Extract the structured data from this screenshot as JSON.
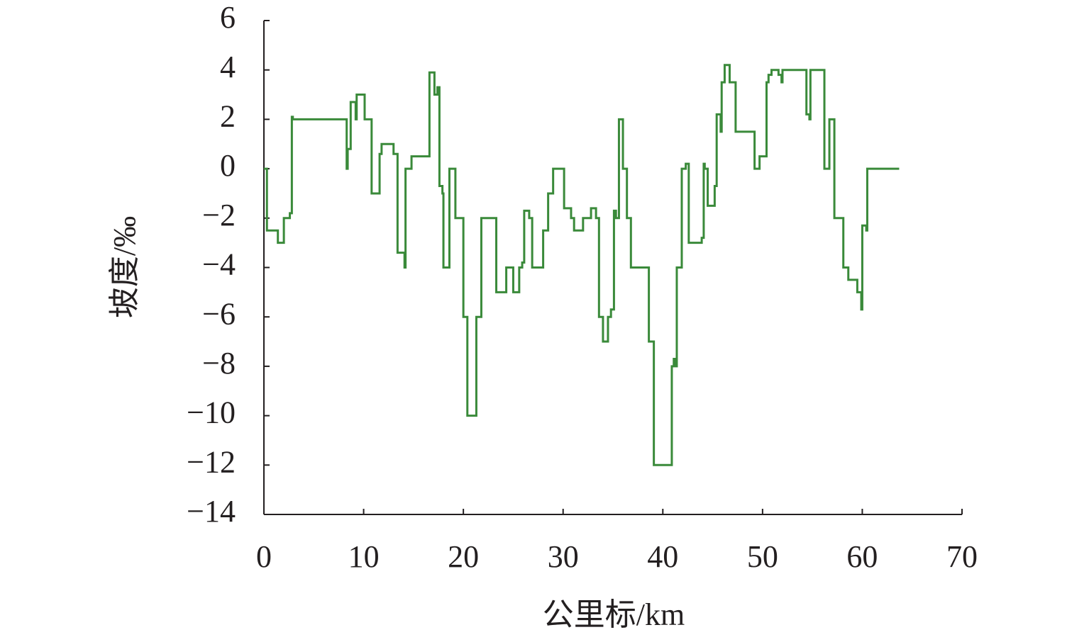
{
  "chart_data": {
    "type": "line",
    "x_label": "公里标/km",
    "y_label": "坡度/‰",
    "xlim": [
      0,
      70
    ],
    "xticks": [
      0,
      10,
      20,
      30,
      40,
      50,
      60,
      70
    ],
    "ylim": [
      -14,
      6
    ],
    "yticks": [
      6,
      4,
      2,
      0,
      {
        "value": -2,
        "label": "−2"
      },
      {
        "value": -4,
        "label": "−4"
      },
      {
        "value": -6,
        "label": "−6"
      },
      {
        "value": -8,
        "label": "−8"
      },
      {
        "value": -10,
        "label": "−10"
      },
      {
        "value": -12,
        "label": "−12"
      },
      {
        "value": -14,
        "label": "−14"
      }
    ],
    "grid": false,
    "x": [
      0,
      0.3,
      0.3,
      1.4,
      1.4,
      2.0,
      2.0,
      2.6,
      2.6,
      2.8,
      2.8,
      2.9,
      2.9,
      8.3,
      8.3,
      8.4,
      8.4,
      8.7,
      8.7,
      9.2,
      9.2,
      9.3,
      9.3,
      10.1,
      10.1,
      10.8,
      10.8,
      11.6,
      11.6,
      11.8,
      11.8,
      13.0,
      13.0,
      13.4,
      13.4,
      14.1,
      14.1,
      14.2,
      14.2,
      14.8,
      14.8,
      16.6,
      16.6,
      17.1,
      17.1,
      17.4,
      17.4,
      17.6,
      17.6,
      17.9,
      17.9,
      18.0,
      18.0,
      18.6,
      18.6,
      19.2,
      19.2,
      20.0,
      20.0,
      20.4,
      20.4,
      21.3,
      21.3,
      21.8,
      21.8,
      23.3,
      23.3,
      24.3,
      24.3,
      25.0,
      25.0,
      25.6,
      25.6,
      25.9,
      25.9,
      26.1,
      26.1,
      26.6,
      26.6,
      26.9,
      26.9,
      28.0,
      28.0,
      28.5,
      28.5,
      29.0,
      29.0,
      30.1,
      30.1,
      30.8,
      30.8,
      31.1,
      31.1,
      32.0,
      32.0,
      32.8,
      32.8,
      33.3,
      33.3,
      33.6,
      33.6,
      34.0,
      34.0,
      34.5,
      34.5,
      34.8,
      34.8,
      35.1,
      35.1,
      35.3,
      35.3,
      35.6,
      35.6,
      36.0,
      36.0,
      36.4,
      36.4,
      36.8,
      36.8,
      38.6,
      38.6,
      39.1,
      39.1,
      40.9,
      40.9,
      41.1,
      41.1,
      41.3,
      41.3,
      41.4,
      41.4,
      41.9,
      41.9,
      42.3,
      42.3,
      42.6,
      42.6,
      43.9,
      43.9,
      44.1,
      44.1,
      44.2,
      44.2,
      44.5,
      44.5,
      45.2,
      45.2,
      45.4,
      45.4,
      45.8,
      45.8,
      45.9,
      45.9,
      46.2,
      46.2,
      46.7,
      46.7,
      47.3,
      47.3,
      49.2,
      49.2,
      49.7,
      49.7,
      50.4,
      50.4,
      50.6,
      50.6,
      50.9,
      50.9,
      51.6,
      51.6,
      51.9,
      51.9,
      52.0,
      52.0,
      54.4,
      54.4,
      54.7,
      54.7,
      54.8,
      54.8,
      56.2,
      56.2,
      56.7,
      56.7,
      57.2,
      57.2,
      58.1,
      58.1,
      58.6,
      58.6,
      59.5,
      59.5,
      59.9,
      59.9,
      60.0,
      60.0,
      60.4,
      60.4,
      60.5,
      60.5,
      63.7
    ],
    "series": [
      {
        "color": "#3a8a3a",
        "values": [
          0,
          0,
          -2.5,
          -2.5,
          -3,
          -3,
          -2,
          -2,
          -1.8,
          -1.8,
          2.1,
          2.1,
          2,
          2,
          0,
          0,
          0.8,
          0.8,
          2.7,
          2.7,
          2,
          2,
          3,
          3,
          2,
          2,
          -1,
          -1,
          0.6,
          0.6,
          1,
          1,
          0.6,
          0.6,
          -3.4,
          -3.4,
          -4,
          -4,
          0,
          0,
          0.5,
          0.5,
          3.9,
          3.9,
          3,
          3,
          3.3,
          3.3,
          -0.7,
          -0.7,
          -1,
          -1,
          -4,
          -4,
          0,
          0,
          -2,
          -2,
          -6,
          -6,
          -10,
          -10,
          -6,
          -6,
          -2,
          -2,
          -5,
          -5,
          -4,
          -4,
          -5,
          -5,
          -4,
          -4,
          -3.8,
          -3.8,
          -1.7,
          -1.7,
          -2,
          -2,
          -4,
          -4,
          -2.5,
          -2.5,
          -1,
          -1,
          0,
          0,
          -1.6,
          -1.6,
          -2,
          -2,
          -2.5,
          -2.5,
          -2,
          -2,
          -1.6,
          -1.6,
          -2,
          -2,
          -6,
          -6,
          -7,
          -7,
          -6,
          -6,
          -5.7,
          -5.7,
          -1.7,
          -1.7,
          -2,
          -2,
          2,
          2,
          0,
          0,
          -2,
          -2,
          -4,
          -4,
          -7,
          -7,
          -12,
          -12,
          -8,
          -8,
          -7.7,
          -7.7,
          -8,
          -8,
          -4,
          -4,
          0,
          0,
          0.2,
          0.2,
          -3,
          -3,
          -2.8,
          -2.8,
          0.2,
          0.2,
          0,
          0,
          -1.5,
          -1.5,
          -0.7,
          -0.7,
          2.2,
          2.2,
          1.5,
          1.5,
          3.5,
          3.5,
          4.2,
          4.2,
          3.5,
          3.5,
          1.5,
          1.5,
          0,
          0,
          0.5,
          0.5,
          3.5,
          3.5,
          3.8,
          3.8,
          4,
          4,
          3.8,
          3.8,
          3.5,
          3.5,
          4,
          4,
          2.2,
          2.2,
          2,
          2,
          4,
          4,
          0,
          0,
          2,
          2,
          -2,
          -2,
          -4,
          -4,
          -4.5,
          -4.5,
          -5,
          -5,
          -5.7,
          -5.7,
          -2.3,
          -2.3,
          -2.5,
          -2.5,
          0,
          0
        ]
      }
    ]
  }
}
